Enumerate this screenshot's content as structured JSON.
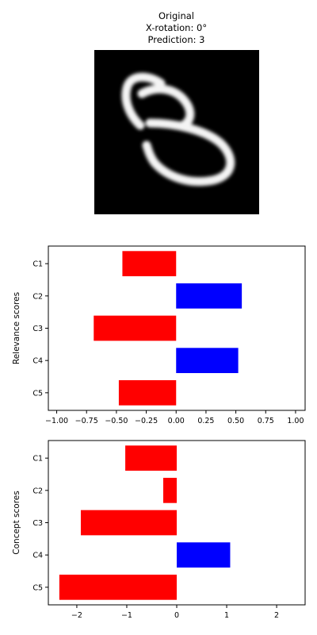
{
  "header": {
    "line1": "Original",
    "line2": "X-rotation: 0°",
    "line3": "Prediction: 3"
  },
  "image": {
    "subject": "handwritten-digit-3"
  },
  "colors": {
    "positive": "#0000ff",
    "negative": "#ff0000"
  },
  "chart_data": [
    {
      "type": "bar",
      "orientation": "horizontal",
      "categories": [
        "C1",
        "C2",
        "C3",
        "C4",
        "C5"
      ],
      "values": [
        -0.45,
        0.55,
        -0.69,
        0.52,
        -0.48
      ],
      "xlabel": "",
      "ylabel": "Relevance scores",
      "xlim": [
        -1.07,
        1.08
      ],
      "xticks": [
        -1.0,
        -0.75,
        -0.5,
        -0.25,
        0.0,
        0.25,
        0.5,
        0.75,
        1.0
      ],
      "xtick_labels": [
        "−1.00",
        "−0.75",
        "−0.50",
        "−0.25",
        "0.00",
        "0.25",
        "0.50",
        "0.75",
        "1.00"
      ],
      "grid": false,
      "colors": [
        "#ff0000",
        "#0000ff",
        "#ff0000",
        "#0000ff",
        "#ff0000"
      ]
    },
    {
      "type": "bar",
      "orientation": "horizontal",
      "categories": [
        "C1",
        "C2",
        "C3",
        "C4",
        "C5"
      ],
      "values": [
        -1.03,
        -0.27,
        -1.92,
        1.07,
        -2.35
      ],
      "xlabel": "",
      "ylabel": "Concept scores",
      "xlim": [
        -2.57,
        2.57
      ],
      "xticks": [
        -2,
        -1,
        0,
        1,
        2
      ],
      "xtick_labels": [
        "−2",
        "−1",
        "0",
        "1",
        "2"
      ],
      "grid": false,
      "colors": [
        "#ff0000",
        "#ff0000",
        "#ff0000",
        "#0000ff",
        "#ff0000"
      ]
    }
  ]
}
